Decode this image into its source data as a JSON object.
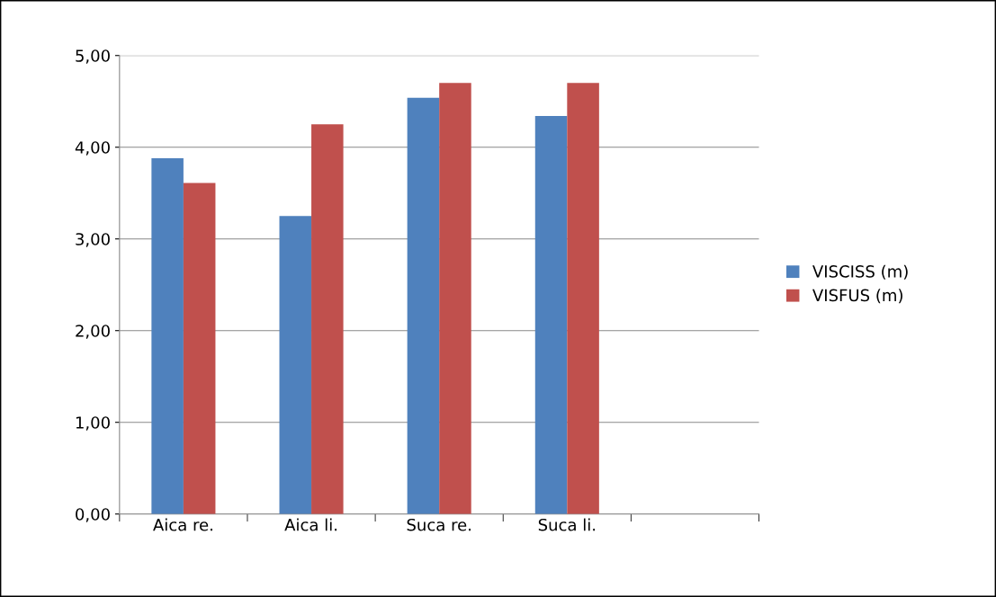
{
  "chart_data": {
    "type": "bar",
    "categories": [
      "Aica re.",
      "Aica li.",
      "Suca re.",
      "Suca li.",
      null
    ],
    "series": [
      {
        "name": "VISCISS (m)",
        "color": "#4f81bd",
        "values": [
          3.88,
          3.25,
          4.54,
          4.34,
          null
        ]
      },
      {
        "name": "VISFUS (m)",
        "color": "#c0504d",
        "values": [
          3.61,
          4.25,
          4.7,
          4.7,
          null
        ]
      }
    ],
    "ylim": [
      0,
      5
    ],
    "yticks": [
      {
        "value": 0,
        "label": "0,00"
      },
      {
        "value": 1,
        "label": "1,00"
      },
      {
        "value": 2,
        "label": "2,00"
      },
      {
        "value": 3,
        "label": "3,00"
      },
      {
        "value": 4,
        "label": "4,00"
      },
      {
        "value": 5,
        "label": "5,00"
      }
    ],
    "grid": "y",
    "legend": "right"
  }
}
